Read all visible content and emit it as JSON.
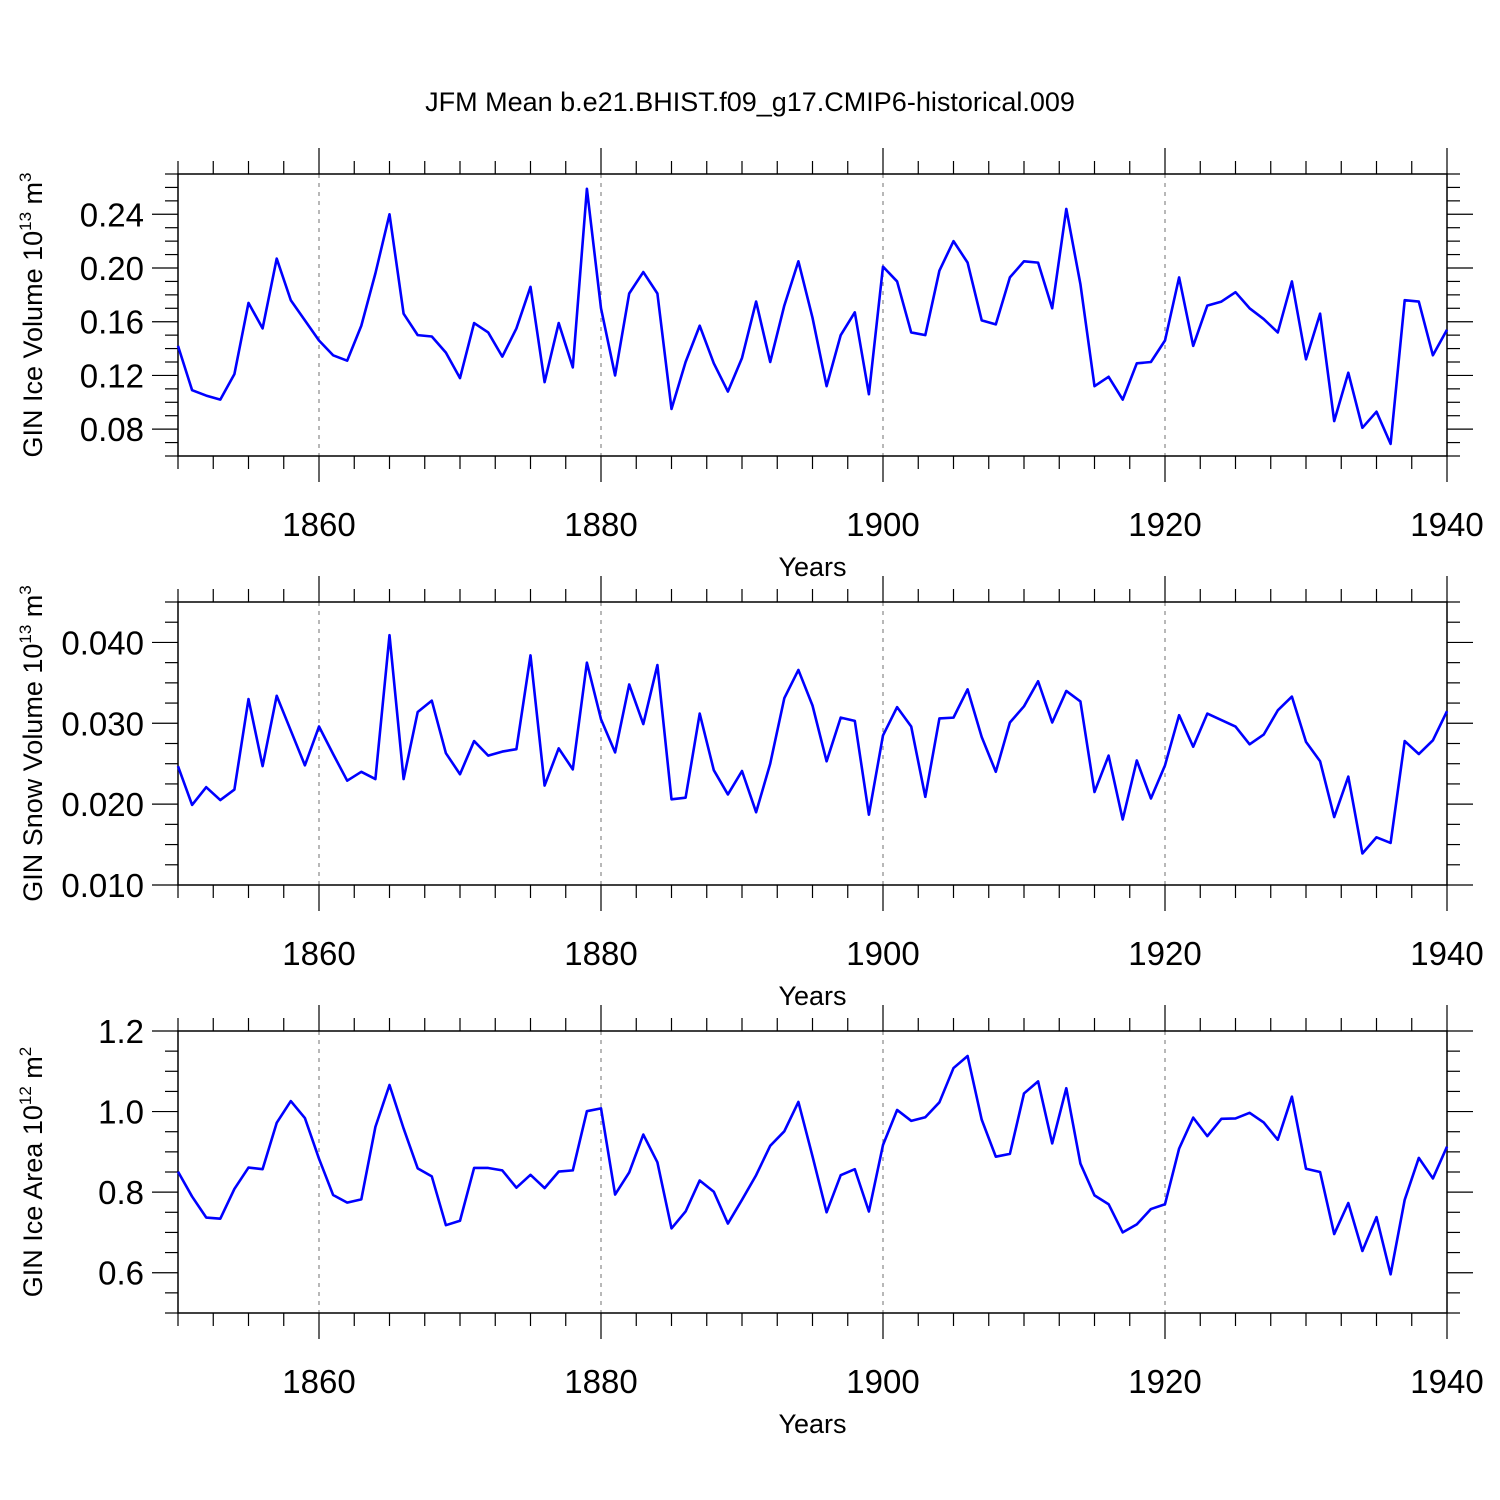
{
  "title": "JFM Mean b.e21.BHIST.f09_g17.CMIP6-historical.009",
  "colors": {
    "line": "#0000ff",
    "axis": "#000000",
    "grid": "#888888"
  },
  "chart_data": [
    {
      "type": "line",
      "ylabel": {
        "main": "GIN Ice Volume 10",
        "sup": "13",
        "unit": " m",
        "unit_sup": "3"
      },
      "xlabel": "Years",
      "xlim": [
        1850,
        1940
      ],
      "ylim": [
        0.06,
        0.27
      ],
      "yticks": [
        0.08,
        0.12,
        0.16,
        0.2,
        0.24
      ],
      "ytick_labels": [
        "0.08",
        "0.12",
        "0.16",
        "0.20",
        "0.24"
      ],
      "xticks": [
        1860,
        1880,
        1900,
        1920,
        1940
      ],
      "xtick_labels": [
        "1860",
        "1880",
        "1900",
        "1920",
        "1940"
      ],
      "x": [
        1850,
        1851,
        1852,
        1853,
        1854,
        1855,
        1856,
        1857,
        1858,
        1859,
        1860,
        1861,
        1862,
        1863,
        1864,
        1865,
        1866,
        1867,
        1868,
        1869,
        1870,
        1871,
        1872,
        1873,
        1874,
        1875,
        1876,
        1877,
        1878,
        1879,
        1880,
        1881,
        1882,
        1883,
        1884,
        1885,
        1886,
        1887,
        1888,
        1889,
        1890,
        1891,
        1892,
        1893,
        1894,
        1895,
        1896,
        1897,
        1898,
        1899,
        1900,
        1901,
        1902,
        1903,
        1904,
        1905,
        1906,
        1907,
        1908,
        1909,
        1910,
        1911,
        1912,
        1913,
        1914,
        1915,
        1916,
        1917,
        1918,
        1919,
        1920,
        1921,
        1922,
        1923,
        1924,
        1925,
        1926,
        1927,
        1928,
        1929,
        1930,
        1931,
        1932,
        1933,
        1934,
        1935,
        1936,
        1937,
        1938,
        1939,
        1940
      ],
      "series": [
        {
          "values": [
            0.142,
            0.109,
            0.105,
            0.102,
            0.121,
            0.174,
            0.155,
            0.207,
            0.176,
            0.161,
            0.146,
            0.135,
            0.131,
            0.157,
            0.196,
            0.24,
            0.166,
            0.15,
            0.149,
            0.137,
            0.118,
            0.159,
            0.152,
            0.134,
            0.155,
            0.186,
            0.115,
            0.159,
            0.126,
            0.259,
            0.17,
            0.12,
            0.181,
            0.197,
            0.181,
            0.095,
            0.13,
            0.157,
            0.129,
            0.108,
            0.133,
            0.175,
            0.13,
            0.172,
            0.205,
            0.163,
            0.112,
            0.15,
            0.167,
            0.106,
            0.201,
            0.19,
            0.152,
            0.15,
            0.198,
            0.22,
            0.204,
            0.161,
            0.158,
            0.193,
            0.205,
            0.204,
            0.17,
            0.244,
            0.188,
            0.112,
            0.119,
            0.102,
            0.129,
            0.13,
            0.146,
            0.193,
            0.142,
            0.172,
            0.175,
            0.182,
            0.17,
            0.162,
            0.152,
            0.19,
            0.132,
            0.166,
            0.086,
            0.122,
            0.081,
            0.093,
            0.069,
            0.176,
            0.175,
            0.135,
            0.154
          ]
        }
      ]
    },
    {
      "type": "line",
      "ylabel": {
        "main": "GIN Snow Volume 10",
        "sup": "13",
        "unit": " m",
        "unit_sup": "3"
      },
      "xlabel": "Years",
      "xlim": [
        1850,
        1940
      ],
      "ylim": [
        0.01,
        0.045
      ],
      "yticks": [
        0.01,
        0.02,
        0.03,
        0.04
      ],
      "ytick_labels": [
        "0.010",
        "0.020",
        "0.030",
        "0.040"
      ],
      "xticks": [
        1860,
        1880,
        1900,
        1920,
        1940
      ],
      "xtick_labels": [
        "1860",
        "1880",
        "1900",
        "1920",
        "1940"
      ],
      "x": [
        1850,
        1851,
        1852,
        1853,
        1854,
        1855,
        1856,
        1857,
        1858,
        1859,
        1860,
        1861,
        1862,
        1863,
        1864,
        1865,
        1866,
        1867,
        1868,
        1869,
        1870,
        1871,
        1872,
        1873,
        1874,
        1875,
        1876,
        1877,
        1878,
        1879,
        1880,
        1881,
        1882,
        1883,
        1884,
        1885,
        1886,
        1887,
        1888,
        1889,
        1890,
        1891,
        1892,
        1893,
        1894,
        1895,
        1896,
        1897,
        1898,
        1899,
        1900,
        1901,
        1902,
        1903,
        1904,
        1905,
        1906,
        1907,
        1908,
        1909,
        1910,
        1911,
        1912,
        1913,
        1914,
        1915,
        1916,
        1917,
        1918,
        1919,
        1920,
        1921,
        1922,
        1923,
        1924,
        1925,
        1926,
        1927,
        1928,
        1929,
        1930,
        1931,
        1932,
        1933,
        1934,
        1935,
        1936,
        1937,
        1938,
        1939,
        1940
      ],
      "series": [
        {
          "values": [
            0.0247,
            0.0199,
            0.0221,
            0.0205,
            0.0218,
            0.033,
            0.0247,
            0.0334,
            0.0291,
            0.0248,
            0.0296,
            0.0262,
            0.0229,
            0.024,
            0.0231,
            0.0409,
            0.0231,
            0.0314,
            0.0328,
            0.0263,
            0.0237,
            0.0278,
            0.026,
            0.0265,
            0.0268,
            0.0384,
            0.0223,
            0.0269,
            0.0243,
            0.0375,
            0.0305,
            0.0264,
            0.0348,
            0.0299,
            0.0372,
            0.0206,
            0.0208,
            0.0312,
            0.0242,
            0.0212,
            0.0241,
            0.019,
            0.025,
            0.0331,
            0.0366,
            0.0322,
            0.0253,
            0.0307,
            0.0303,
            0.0187,
            0.0285,
            0.032,
            0.0296,
            0.0209,
            0.0306,
            0.0307,
            0.0342,
            0.0283,
            0.024,
            0.0301,
            0.0321,
            0.0352,
            0.0301,
            0.034,
            0.0327,
            0.0215,
            0.026,
            0.0181,
            0.0254,
            0.0207,
            0.0248,
            0.031,
            0.0271,
            0.0312,
            0.0304,
            0.0296,
            0.0274,
            0.0286,
            0.0316,
            0.0333,
            0.0277,
            0.0253,
            0.0184,
            0.0234,
            0.0139,
            0.0159,
            0.0152,
            0.0278,
            0.0262,
            0.0279,
            0.0315
          ]
        }
      ]
    },
    {
      "type": "line",
      "ylabel": {
        "main": "GIN Ice Area 10",
        "sup": "12",
        "unit": " m",
        "unit_sup": "2"
      },
      "xlabel": "Years",
      "xlim": [
        1850,
        1940
      ],
      "ylim": [
        0.5,
        1.2
      ],
      "yticks": [
        0.6,
        0.8,
        1.0,
        1.2
      ],
      "ytick_labels": [
        "0.6",
        "0.8",
        "1.0",
        "1.2"
      ],
      "xticks": [
        1860,
        1880,
        1900,
        1920,
        1940
      ],
      "xtick_labels": [
        "1860",
        "1880",
        "1900",
        "1920",
        "1940"
      ],
      "x": [
        1850,
        1851,
        1852,
        1853,
        1854,
        1855,
        1856,
        1857,
        1858,
        1859,
        1860,
        1861,
        1862,
        1863,
        1864,
        1865,
        1866,
        1867,
        1868,
        1869,
        1870,
        1871,
        1872,
        1873,
        1874,
        1875,
        1876,
        1877,
        1878,
        1879,
        1880,
        1881,
        1882,
        1883,
        1884,
        1885,
        1886,
        1887,
        1888,
        1889,
        1890,
        1891,
        1892,
        1893,
        1894,
        1895,
        1896,
        1897,
        1898,
        1899,
        1900,
        1901,
        1902,
        1903,
        1904,
        1905,
        1906,
        1907,
        1908,
        1909,
        1910,
        1911,
        1912,
        1913,
        1914,
        1915,
        1916,
        1917,
        1918,
        1919,
        1920,
        1921,
        1922,
        1923,
        1924,
        1925,
        1926,
        1927,
        1928,
        1929,
        1930,
        1931,
        1932,
        1933,
        1934,
        1935,
        1936,
        1937,
        1938,
        1939,
        1940
      ],
      "series": [
        {
          "values": [
            0.851,
            0.789,
            0.737,
            0.734,
            0.808,
            0.861,
            0.857,
            0.972,
            1.026,
            0.984,
            0.883,
            0.793,
            0.774,
            0.782,
            0.962,
            1.066,
            0.958,
            0.859,
            0.839,
            0.718,
            0.729,
            0.86,
            0.86,
            0.854,
            0.811,
            0.843,
            0.81,
            0.851,
            0.854,
            1.001,
            1.008,
            0.794,
            0.849,
            0.943,
            0.874,
            0.71,
            0.752,
            0.829,
            0.801,
            0.722,
            0.781,
            0.842,
            0.915,
            0.951,
            1.024,
            0.889,
            0.75,
            0.842,
            0.857,
            0.752,
            0.917,
            1.004,
            0.977,
            0.986,
            1.023,
            1.108,
            1.138,
            0.98,
            0.888,
            0.895,
            1.045,
            1.075,
            0.921,
            1.058,
            0.871,
            0.792,
            0.77,
            0.7,
            0.72,
            0.758,
            0.77,
            0.908,
            0.985,
            0.939,
            0.982,
            0.983,
            0.997,
            0.973,
            0.93,
            1.037,
            0.858,
            0.85,
            0.696,
            0.773,
            0.654,
            0.738,
            0.596,
            0.781,
            0.885,
            0.834,
            0.913
          ]
        }
      ]
    }
  ]
}
